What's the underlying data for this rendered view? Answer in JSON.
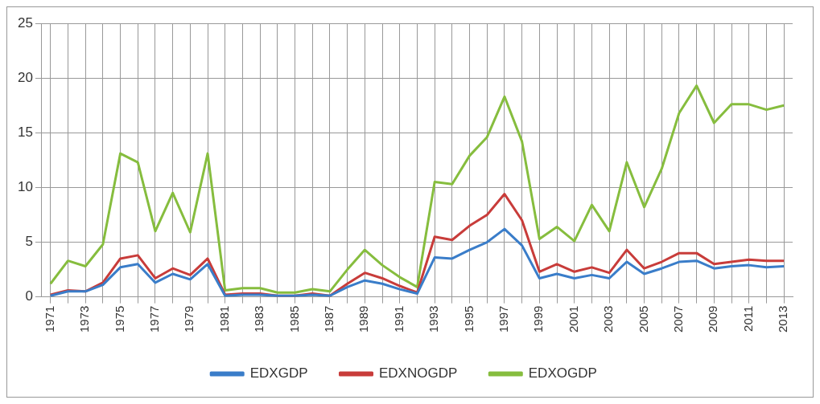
{
  "chart_data": {
    "type": "line",
    "categories": [
      "1971",
      null,
      "1973",
      null,
      "1975",
      null,
      "1977",
      null,
      "1979",
      null,
      "1981",
      null,
      "1983",
      null,
      "1985",
      null,
      "1987",
      null,
      "1989",
      null,
      "1991",
      null,
      "1993",
      null,
      "1995",
      null,
      "1997",
      null,
      "1999",
      null,
      "2001",
      null,
      "2003",
      null,
      "2005",
      null,
      "2007",
      null,
      "2009",
      null,
      "2011",
      null,
      "2013"
    ],
    "series": [
      {
        "name": "EDXGDP",
        "color": "#3a7dc9",
        "values": [
          0.1,
          0.5,
          0.5,
          1.1,
          2.7,
          3.0,
          1.3,
          2.1,
          1.6,
          3.0,
          0.1,
          0.2,
          0.2,
          0.1,
          0.1,
          0.2,
          0.1,
          0.9,
          1.5,
          1.2,
          0.7,
          0.3,
          3.6,
          3.5,
          4.3,
          5.0,
          6.2,
          4.7,
          1.7,
          2.1,
          1.7,
          2.0,
          1.7,
          3.2,
          2.1,
          2.6,
          3.2,
          3.3,
          2.6,
          2.8,
          2.9,
          2.7,
          2.8
        ]
      },
      {
        "name": "EDXNOGDP",
        "color": "#c83c3a",
        "values": [
          0.2,
          0.6,
          0.5,
          1.3,
          3.5,
          3.8,
          1.7,
          2.6,
          2.0,
          3.5,
          0.2,
          0.3,
          0.3,
          0.1,
          0.1,
          0.3,
          0.1,
          1.2,
          2.2,
          1.7,
          1.0,
          0.4,
          5.5,
          5.2,
          6.5,
          7.5,
          9.4,
          7.0,
          2.3,
          3.0,
          2.3,
          2.7,
          2.2,
          4.3,
          2.6,
          3.2,
          4.0,
          4.0,
          3.0,
          3.2,
          3.4,
          3.3,
          3.3
        ]
      },
      {
        "name": "EDXOGDP",
        "color": "#86bd3e",
        "values": [
          1.2,
          3.3,
          2.8,
          4.8,
          13.1,
          12.3,
          6.0,
          9.5,
          5.9,
          13.1,
          0.6,
          0.8,
          0.8,
          0.4,
          0.4,
          0.7,
          0.5,
          2.5,
          4.3,
          2.9,
          1.8,
          0.9,
          10.5,
          10.3,
          12.9,
          14.6,
          18.3,
          14.2,
          5.3,
          6.4,
          5.1,
          8.4,
          6.0,
          12.3,
          8.2,
          11.7,
          16.8,
          19.3,
          15.9,
          17.6,
          17.6,
          17.1,
          17.5
        ]
      }
    ],
    "ylim": [
      0,
      25
    ],
    "yticks": [
      0,
      5,
      10,
      15,
      20,
      25
    ],
    "grid": true,
    "legend": "bottom",
    "marker": "none",
    "line_style": "solid"
  }
}
